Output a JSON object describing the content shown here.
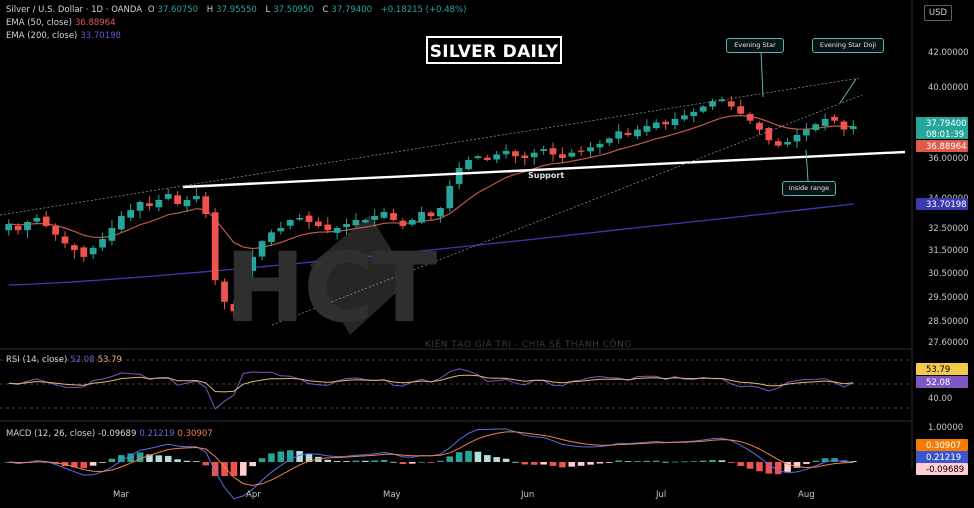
{
  "header": {
    "symbol": "Silver / U.S. Dollar · 1D · OANDA",
    "ohlc": [
      {
        "k": "O",
        "v": "37.60750"
      },
      {
        "k": "H",
        "v": "37.95550"
      },
      {
        "k": "L",
        "v": "37.50950"
      },
      {
        "k": "C",
        "v": "37.79400"
      }
    ],
    "change": "+0.18215 (+0.48%)",
    "ema50_label": "EMA (50, close)",
    "ema50_value": "36.88964",
    "ema200_label": "EMA (200, close)",
    "ema200_value": "33.70198",
    "currency": "USD"
  },
  "title": "SILVER DAILY",
  "annotations": {
    "evening_star": "Evening Star",
    "evening_star_doji": "Evening Star Doji",
    "inside_range": "Inside range",
    "support": "Support"
  },
  "watermark": {
    "logo": "HCT",
    "tagline": "KIẾN TẠO GIÁ TRỊ - CHIA SẺ THÀNH CÔNG"
  },
  "colors": {
    "up": "#26a69a",
    "down": "#ef5350",
    "ema50": "#c0584a",
    "ema200": "#3b3bb0",
    "rsi": "#7e57c2",
    "rsi_ma": "#e0b874",
    "macd": "#5b6ee0",
    "signal": "#f08050"
  },
  "rsi": {
    "label": "RSI (14, close)",
    "value": "52.08",
    "ma_value": "53.79",
    "axis_label": "40.00"
  },
  "macd": {
    "label": "MACD (12, 26, close)",
    "hist": "-0.09689",
    "macd": "0.21219",
    "signal": "0.30907",
    "axis_label": "1.00000"
  },
  "price_axis": {
    "labels": [
      "42.00000",
      "40.00000",
      "36.00000",
      "34.00000",
      "32.50000",
      "31.50000",
      "30.50000",
      "29.50000",
      "28.50000",
      "27.60000"
    ],
    "last_price": "37.79400",
    "countdown": "08:01:39",
    "ema50_tag": "36.88964",
    "ema200_tag": "33.70198"
  },
  "x_axis": [
    "Mar",
    "Apr",
    "May",
    "Jun",
    "Jul",
    "Aug"
  ],
  "chart_data": {
    "type": "candlestick",
    "title": "SILVER DAILY",
    "instrument": "Silver / U.S. Dollar",
    "timeframe": "1D",
    "y_labels_shown": [
      "42.00000",
      "40.00000",
      "36.00000",
      "34.00000",
      "32.50000",
      "31.50000",
      "30.50000",
      "29.50000",
      "28.50000",
      "27.60000"
    ],
    "series": [
      {
        "name": "EMA (50, close)",
        "last": 36.88964
      },
      {
        "name": "EMA (200, close)",
        "last": 33.70198
      }
    ],
    "close_path": [
      32.7,
      32.4,
      32.8,
      33.0,
      32.6,
      32.2,
      31.8,
      31.5,
      31.2,
      31.6,
      32.0,
      32.5,
      33.1,
      33.4,
      33.8,
      33.6,
      33.9,
      34.2,
      33.7,
      33.9,
      34.1,
      33.2,
      30.2,
      29.3,
      28.9,
      30.5,
      31.2,
      31.9,
      32.3,
      32.5,
      32.9,
      33.0,
      32.8,
      32.6,
      32.4,
      32.5,
      32.7,
      32.9,
      32.9,
      33.1,
      33.3,
      32.9,
      32.6,
      32.9,
      33.3,
      33.1,
      33.5,
      34.6,
      35.5,
      35.9,
      36.1,
      35.9,
      36.2,
      36.4,
      36.1,
      36.0,
      36.3,
      36.5,
      36.2,
      36.0,
      36.3,
      36.4,
      36.6,
      36.8,
      37.1,
      37.5,
      37.3,
      37.6,
      37.8,
      38.0,
      37.9,
      38.2,
      38.4,
      38.6,
      38.9,
      39.2,
      39.3,
      38.9,
      38.5,
      38.1,
      37.6,
      37.0,
      36.7,
      36.9,
      37.3,
      37.6,
      37.9,
      38.2,
      38.1,
      37.6,
      37.79
    ],
    "support": "Support",
    "patterns": [
      "Evening Star",
      "Evening Star Doji",
      "Inside range"
    ]
  }
}
